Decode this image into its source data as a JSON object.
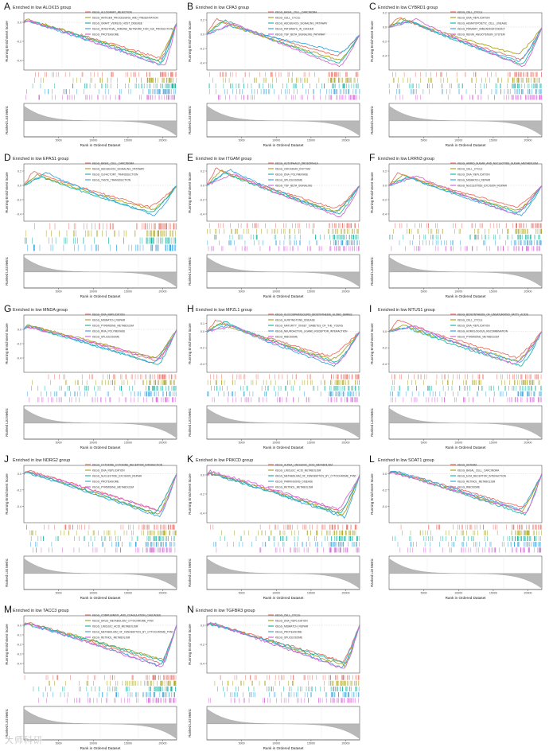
{
  "figure": {
    "watermark": "大师科研",
    "common": {
      "ylabel_top": "Running Enrichment Score",
      "ylabel_bottom": "Ranked List Metric",
      "xlabel": "Rank in Ordered Dataset",
      "xticks": [
        "5000",
        "10000",
        "15000",
        "20000"
      ],
      "xmax": 22000
    },
    "colors": [
      "#e8736a",
      "#a9a521",
      "#20b7a4",
      "#3fa7df",
      "#d668d8"
    ]
  },
  "chart_data": [
    {
      "type": "line",
      "letter": "A",
      "title": "Enriched in low ALOX15 group",
      "ylim": [
        -0.5,
        0.1
      ],
      "yticks": [
        "0.0",
        "-0.2",
        "-0.4"
      ],
      "shape": "down",
      "series": [
        {
          "name": "KEGG_ALLOGRAFT_REJECTION",
          "min": -0.38,
          "minAt": 0.9,
          "peak": 0.02
        },
        {
          "name": "KEGG_ANTIGEN_PROCESSING_AND_PRESENTATION",
          "min": -0.4,
          "minAt": 0.88,
          "peak": 0.03
        },
        {
          "name": "KEGG_GRAFT_VERSUS_HOST_DISEASE",
          "min": -0.42,
          "minAt": 0.91,
          "peak": 0.02
        },
        {
          "name": "KEGG_INTESTINAL_IMMUNE_NETWORK_FOR_IGA_PRODUCTION",
          "min": -0.44,
          "minAt": 0.89,
          "peak": 0.01
        },
        {
          "name": "KEGG_PROTEASOME",
          "min": -0.46,
          "minAt": 0.92,
          "peak": 0.02
        }
      ]
    },
    {
      "type": "line",
      "letter": "B",
      "title": "Enriched in low CPA3 group",
      "ylim": [
        -0.5,
        0.3
      ],
      "yticks": [
        "0.2",
        "0.0",
        "-0.2",
        "-0.4"
      ],
      "shape": "valley",
      "series": [
        {
          "name": "KEGG_BASAL_CELL_CARCINOMA",
          "min": -0.3,
          "minAt": 0.85,
          "peak": 0.22
        },
        {
          "name": "KEGG_CELL_CYCLE",
          "min": -0.36,
          "minAt": 0.87,
          "peak": 0.18
        },
        {
          "name": "KEGG_HEDGEHOG_SIGNALING_PATHWAY",
          "min": -0.4,
          "minAt": 0.86,
          "peak": 0.2
        },
        {
          "name": "KEGG_PATHWAYS_IN_CANCER",
          "min": -0.25,
          "minAt": 0.88,
          "peak": 0.12
        },
        {
          "name": "KEGG_TGF_BETA_SIGNALING_PATHWAY",
          "min": -0.45,
          "minAt": 0.87,
          "peak": 0.16
        }
      ]
    },
    {
      "type": "line",
      "letter": "C",
      "title": "Enriched in low CYBRD1 group",
      "ylim": [
        -0.6,
        0.2
      ],
      "yticks": [
        "0.2",
        "0.0",
        "-0.2",
        "-0.4"
      ],
      "shape": "valley",
      "series": [
        {
          "name": "KEGG_CELL_CYCLE",
          "min": -0.45,
          "minAt": 0.86,
          "peak": 0.14
        },
        {
          "name": "KEGG_DNA_REPLICATION",
          "min": -0.38,
          "minAt": 0.84,
          "peak": 0.12
        },
        {
          "name": "KEGG_HEMATOPOIETIC_CELL_LINEAGE",
          "min": -0.52,
          "minAt": 0.87,
          "peak": 0.1
        },
        {
          "name": "KEGG_PRIMARY_IMMUNODEFICIENCY",
          "min": -0.48,
          "minAt": 0.85,
          "peak": 0.08
        },
        {
          "name": "KEGG_RENIN_ANGIOTENSIN_SYSTEM",
          "min": -0.55,
          "minAt": 0.88,
          "peak": 0.11
        }
      ]
    },
    {
      "type": "line",
      "letter": "D",
      "title": "Enriched in low EPAS1 group",
      "ylim": [
        -0.5,
        0.3
      ],
      "yticks": [
        "0.2",
        "0.0",
        "-0.2",
        "-0.4"
      ],
      "shape": "valley",
      "series": [
        {
          "name": "KEGG_BASAL_CELL_CARCINOMA",
          "min": -0.3,
          "minAt": 0.82,
          "peak": 0.2
        },
        {
          "name": "KEGG_HEDGEHOG_SIGNALING_PATHWAY",
          "min": -0.34,
          "minAt": 0.84,
          "peak": 0.15
        },
        {
          "name": "KEGG_OLFACTORY_TRANSDUCTION",
          "min": -0.38,
          "minAt": 0.83,
          "peak": 0.12
        },
        {
          "name": "KEGG_TASTE_TRANSDUCTION",
          "min": -0.42,
          "minAt": 0.85,
          "peak": 0.18
        }
      ]
    },
    {
      "type": "line",
      "letter": "E",
      "title": "Enriched in low ITGAM group",
      "ylim": [
        -0.5,
        0.3
      ],
      "yticks": [
        "0.2",
        "0.0",
        "-0.2",
        "-0.4"
      ],
      "shape": "valley",
      "series": [
        {
          "name": "KEGG_AUTOPHAGY_DROSOPHILA",
          "min": -0.32,
          "minAt": 0.84,
          "peak": 0.24
        },
        {
          "name": "KEGG_CIRCADIAN_RHYTHM",
          "min": -0.36,
          "minAt": 0.85,
          "peak": 0.2
        },
        {
          "name": "KEGG_DNA_POLYMERASE",
          "min": -0.4,
          "minAt": 0.86,
          "peak": 0.18
        },
        {
          "name": "KEGG_SPLICEOSOME",
          "min": -0.38,
          "minAt": 0.83,
          "peak": 0.22
        },
        {
          "name": "KEGG_TGF_BETA_SIGNALING",
          "min": -0.44,
          "minAt": 0.87,
          "peak": 0.16
        }
      ]
    },
    {
      "type": "line",
      "letter": "F",
      "title": "Enriched in low LRRN3 group",
      "ylim": [
        -0.5,
        0.3
      ],
      "yticks": [
        "0.2",
        "0.0",
        "-0.2",
        "-0.4"
      ],
      "shape": "valley",
      "series": [
        {
          "name": "KEGG_AMINO_SUGAR_AND_NUCLEOTIDE_SUGAR_METABOLISM",
          "min": -0.3,
          "minAt": 0.83,
          "peak": 0.18
        },
        {
          "name": "KEGG_CELL_CYCLE",
          "min": -0.35,
          "minAt": 0.84,
          "peak": 0.15
        },
        {
          "name": "KEGG_DNA_REPLICATION",
          "min": -0.38,
          "minAt": 0.85,
          "peak": 0.12
        },
        {
          "name": "KEGG_MISMATCH_REPAIR",
          "min": -0.42,
          "minAt": 0.86,
          "peak": 0.1
        },
        {
          "name": "KEGG_NUCLEOTIDE_EXCISION_REPAIR",
          "min": -0.4,
          "minAt": 0.82,
          "peak": 0.14
        }
      ]
    },
    {
      "type": "line",
      "letter": "G",
      "title": "Enriched in low MNDA group",
      "ylim": [
        -0.6,
        0.2
      ],
      "yticks": [
        "0.0",
        "-0.2",
        "-0.4"
      ],
      "shape": "down",
      "series": [
        {
          "name": "KEGG_DNA_REPLICATION",
          "min": -0.44,
          "minAt": 0.87,
          "peak": 0.05
        },
        {
          "name": "KEGG_MISMATCH_REPAIR",
          "min": -0.4,
          "minAt": 0.86,
          "peak": 0.06
        },
        {
          "name": "KEGG_PYRIMIDINE_METABOLISM",
          "min": -0.5,
          "minAt": 0.88,
          "peak": 0.04
        },
        {
          "name": "KEGG_RNA_POLYMERASE",
          "min": -0.47,
          "minAt": 0.85,
          "peak": 0.05
        },
        {
          "name": "KEGG_SPLICEOSOME",
          "min": -0.42,
          "minAt": 0.89,
          "peak": 0.03
        }
      ]
    },
    {
      "type": "line",
      "letter": "H",
      "title": "Enriched in low MPZL1 group",
      "ylim": [
        -0.5,
        0.2
      ],
      "yticks": [
        "0.1",
        "0.0",
        "-0.2",
        "-0.4"
      ],
      "shape": "valley",
      "series": [
        {
          "name": "KEGG_GLYCOSPHINGOLIPID_BIOSYNTHESIS_GLOBO_SERIES",
          "min": -0.3,
          "minAt": 0.8,
          "peak": 0.14
        },
        {
          "name": "KEGG_HUNTINGTONS_DISEASE",
          "min": -0.34,
          "minAt": 0.82,
          "peak": 0.1
        },
        {
          "name": "KEGG_MATURITY_ONSET_DIABETES_OF_THE_YOUNG",
          "min": -0.38,
          "minAt": 0.84,
          "peak": 0.12
        },
        {
          "name": "KEGG_NEUROACTIVE_LIGAND_RECEPTOR_INTERACTION",
          "min": -0.42,
          "minAt": 0.83,
          "peak": 0.08
        },
        {
          "name": "KEGG_RIBOSOME",
          "min": -0.4,
          "minAt": 0.85,
          "peak": 0.06
        }
      ]
    },
    {
      "type": "line",
      "letter": "I",
      "title": "Enriched in low MTUS1 group",
      "ylim": [
        -0.5,
        0.2
      ],
      "yticks": [
        "0.0",
        "-0.2",
        "-0.4"
      ],
      "shape": "valley",
      "series": [
        {
          "name": "KEGG_BIOSYNTHESIS_OF_UNSATURATED_FATTY_ACIDS",
          "min": -0.32,
          "minAt": 0.83,
          "peak": 0.14
        },
        {
          "name": "KEGG_CELL_CYCLE",
          "min": -0.36,
          "minAt": 0.84,
          "peak": 0.08
        },
        {
          "name": "KEGG_DNA_REPLICATION",
          "min": -0.42,
          "minAt": 0.86,
          "peak": 0.05
        },
        {
          "name": "KEGG_HOMOLOGOUS_RECOMBINATION",
          "min": -0.38,
          "minAt": 0.85,
          "peak": 0.06
        },
        {
          "name": "KEGG_PYRIMIDINE_METABOLISM",
          "min": -0.4,
          "minAt": 0.82,
          "peak": 0.07
        }
      ]
    },
    {
      "type": "line",
      "letter": "J",
      "title": "Enriched in low NDRG2 group",
      "ylim": [
        -0.6,
        0.1
      ],
      "yticks": [
        "0.0",
        "-0.2",
        "-0.4"
      ],
      "shape": "down",
      "series": [
        {
          "name": "KEGG_CYTOKINE_CYTOKINE_RECEPTOR_INTERACTION",
          "min": -0.45,
          "minAt": 0.87,
          "peak": 0.04
        },
        {
          "name": "KEGG_DNA_REPLICATION",
          "min": -0.5,
          "minAt": 0.88,
          "peak": 0.02
        },
        {
          "name": "KEGG_NUCLEOTIDE_EXCISION_REPAIR",
          "min": -0.48,
          "minAt": 0.86,
          "peak": 0.02
        },
        {
          "name": "KEGG_PROTEASOME",
          "min": -0.53,
          "minAt": 0.89,
          "peak": 0.01
        },
        {
          "name": "KEGG_PYRIMIDINE_METABOLISM",
          "min": -0.46,
          "minAt": 0.9,
          "peak": 0.03
        }
      ]
    },
    {
      "type": "line",
      "letter": "K",
      "title": "Enriched in low PRKCD group",
      "ylim": [
        -0.5,
        0.1
      ],
      "yticks": [
        "0.0",
        "-0.2",
        "-0.4"
      ],
      "shape": "down",
      "series": [
        {
          "name": "KEGG_ALPHA_LINOLENIC_ACID_METABOLISM",
          "min": -0.38,
          "minAt": 0.88,
          "peak": 0.02
        },
        {
          "name": "KEGG_LINOLEIC_ACID_METABOLISM",
          "min": -0.42,
          "minAt": 0.89,
          "peak": 0.03
        },
        {
          "name": "KEGG_METABOLISM_OF_XENOBIOTICS_BY_CYTOCHROME_P450",
          "min": -0.4,
          "minAt": 0.87,
          "peak": 0.01
        },
        {
          "name": "KEGG_PARKINSONS_DISEASE",
          "min": -0.44,
          "minAt": 0.9,
          "peak": 0.02
        },
        {
          "name": "KEGG_RETINOL_METABOLISM",
          "min": -0.36,
          "minAt": 0.86,
          "peak": 0.04
        }
      ]
    },
    {
      "type": "line",
      "letter": "L",
      "title": "Enriched in low SOAT1 group",
      "ylim": [
        -0.6,
        0.1
      ],
      "yticks": [
        "0.0",
        "-0.2",
        "-0.4"
      ],
      "shape": "down",
      "series": [
        {
          "name": "KEGG_ASTHMA",
          "min": -0.42,
          "minAt": 0.88,
          "peak": 0.03
        },
        {
          "name": "KEGG_BASAL_CELL_CARCINOMA",
          "min": -0.46,
          "minAt": 0.87,
          "peak": 0.02
        },
        {
          "name": "KEGG_ECM_RECEPTOR_INTERACTION",
          "min": -0.5,
          "minAt": 0.89,
          "peak": 0.02
        },
        {
          "name": "KEGG_RETINOL_METABOLISM",
          "min": -0.44,
          "minAt": 0.86,
          "peak": 0.04
        },
        {
          "name": "KEGG_RIBOSOME",
          "min": -0.48,
          "minAt": 0.9,
          "peak": 0.01
        }
      ]
    },
    {
      "type": "line",
      "letter": "M",
      "title": "Enriched in low TACC3 group",
      "ylim": [
        -0.5,
        0.1
      ],
      "yticks": [
        "0.0",
        "-0.1",
        "-0.2",
        "-0.3",
        "-0.4"
      ],
      "shape": "down",
      "series": [
        {
          "name": "KEGG_COMPLEMENT_AND_COAGULATION_CASCADES",
          "min": -0.4,
          "minAt": 0.9,
          "peak": 0.03
        },
        {
          "name": "KEGG_DRUG_METABOLISM_CYTOCHROME_P450",
          "min": -0.36,
          "minAt": 0.91,
          "peak": 0.02
        },
        {
          "name": "KEGG_LINOLEIC_ACID_METABOLISM",
          "min": -0.38,
          "minAt": 0.92,
          "peak": 0.02
        },
        {
          "name": "KEGG_METABOLISM_OF_XENOBIOTICS_BY_CYTOCHROME_P450",
          "min": -0.42,
          "minAt": 0.89,
          "peak": 0.01
        },
        {
          "name": "KEGG_RETINOL_METABOLISM",
          "min": -0.44,
          "minAt": 0.9,
          "peak": 0.02
        }
      ]
    },
    {
      "type": "line",
      "letter": "N",
      "title": "Enriched in low TGFBR3 group",
      "ylim": [
        -0.5,
        0.1
      ],
      "yticks": [
        "0.0",
        "-0.2",
        "-0.4"
      ],
      "shape": "down",
      "series": [
        {
          "name": "KEGG_CELL_CYCLE",
          "min": -0.38,
          "minAt": 0.89,
          "peak": 0.02
        },
        {
          "name": "KEGG_DNA_REPLICATION",
          "min": -0.42,
          "minAt": 0.9,
          "peak": 0.02
        },
        {
          "name": "KEGG_MISMATCH_REPAIR",
          "min": -0.4,
          "minAt": 0.91,
          "peak": 0.01
        },
        {
          "name": "KEGG_PROTEASOME",
          "min": -0.44,
          "minAt": 0.88,
          "peak": 0.03
        },
        {
          "name": "KEGG_SPLICEOSOME",
          "min": -0.46,
          "minAt": 0.9,
          "peak": 0.02
        }
      ]
    }
  ]
}
